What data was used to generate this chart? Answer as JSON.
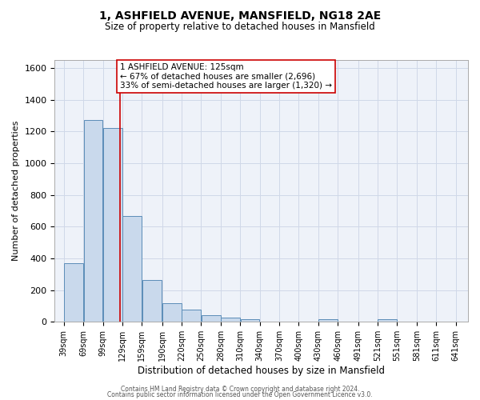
{
  "title": "1, ASHFIELD AVENUE, MANSFIELD, NG18 2AE",
  "subtitle": "Size of property relative to detached houses in Mansfield",
  "xlabel": "Distribution of detached houses by size in Mansfield",
  "ylabel": "Number of detached properties",
  "bar_left_edges": [
    39,
    69,
    99,
    129,
    159,
    190,
    220,
    250,
    280,
    310,
    340,
    370,
    400,
    430,
    460,
    491,
    521,
    551,
    581,
    611
  ],
  "bar_widths": [
    30,
    30,
    30,
    30,
    31,
    30,
    30,
    30,
    30,
    30,
    30,
    30,
    30,
    30,
    31,
    30,
    30,
    30,
    30,
    30
  ],
  "bar_heights": [
    370,
    1270,
    1220,
    665,
    265,
    120,
    75,
    40,
    25,
    15,
    0,
    0,
    0,
    15,
    0,
    0,
    15,
    0,
    0,
    0
  ],
  "x_tick_labels": [
    "39sqm",
    "69sqm",
    "99sqm",
    "129sqm",
    "159sqm",
    "190sqm",
    "220sqm",
    "250sqm",
    "280sqm",
    "310sqm",
    "340sqm",
    "370sqm",
    "400sqm",
    "430sqm",
    "460sqm",
    "491sqm",
    "521sqm",
    "551sqm",
    "581sqm",
    "611sqm",
    "641sqm"
  ],
  "x_tick_positions": [
    39,
    69,
    99,
    129,
    159,
    190,
    220,
    250,
    280,
    310,
    340,
    370,
    400,
    430,
    460,
    491,
    521,
    551,
    581,
    611,
    641
  ],
  "ylim": [
    0,
    1650
  ],
  "xlim": [
    25,
    660
  ],
  "bar_color": "#c9d9ec",
  "bar_edge_color": "#5b8db8",
  "grid_color": "#d0d8e8",
  "bg_color": "#eef2f9",
  "property_size": 125,
  "red_line_color": "#cc0000",
  "annotation_line1": "1 ASHFIELD AVENUE: 125sqm",
  "annotation_line2": "← 67% of detached houses are smaller (2,696)",
  "annotation_line3": "33% of semi-detached houses are larger (1,320) →",
  "annotation_box_edge": "#cc0000",
  "footer_line1": "Contains HM Land Registry data © Crown copyright and database right 2024.",
  "footer_line2": "Contains public sector information licensed under the Open Government Licence v3.0."
}
